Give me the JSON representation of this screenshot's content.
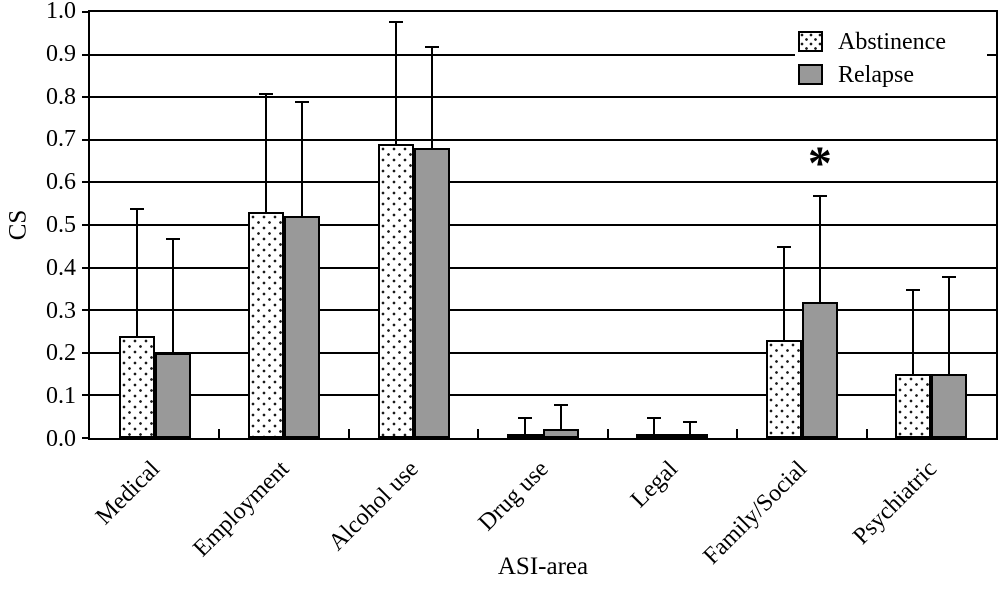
{
  "figure": {
    "background": "#ffffff",
    "line_color": "#000000",
    "relapse_gray": "#999999",
    "abstinence_fill": "white-with-black-dots"
  },
  "chart_data": {
    "type": "bar",
    "title": "",
    "xlabel": "ASI-area",
    "ylabel": "CS",
    "ylim": [
      0.0,
      1.0
    ],
    "ytick_step": 0.1,
    "yticks": [
      "0.0",
      "0.1",
      "0.2",
      "0.3",
      "0.4",
      "0.5",
      "0.6",
      "0.7",
      "0.8",
      "0.9",
      "1.0"
    ],
    "grid": true,
    "legend_position": "top-right-inside",
    "error_bars": "upper-only",
    "categories": [
      "Medical",
      "Employment",
      "Alcohol use",
      "Drug use",
      "Legal",
      "Family/Social",
      "Psychiatric"
    ],
    "series": [
      {
        "name": "Abstinence",
        "pattern": "dotted-white",
        "values": [
          0.24,
          0.53,
          0.69,
          0.01,
          0.01,
          0.23,
          0.15
        ],
        "error_upper": [
          0.54,
          0.81,
          0.98,
          0.05,
          0.05,
          0.45,
          0.35
        ]
      },
      {
        "name": "Relapse",
        "pattern": "solid-gray",
        "color": "#999999",
        "values": [
          0.2,
          0.52,
          0.68,
          0.02,
          0.01,
          0.32,
          0.15
        ],
        "error_upper": [
          0.47,
          0.79,
          0.92,
          0.08,
          0.04,
          0.57,
          0.38
        ]
      }
    ],
    "annotations": [
      {
        "text": "*",
        "category": "Family/Social",
        "series": "Relapse",
        "y": 0.63,
        "meaning": "significance-marker"
      }
    ]
  }
}
